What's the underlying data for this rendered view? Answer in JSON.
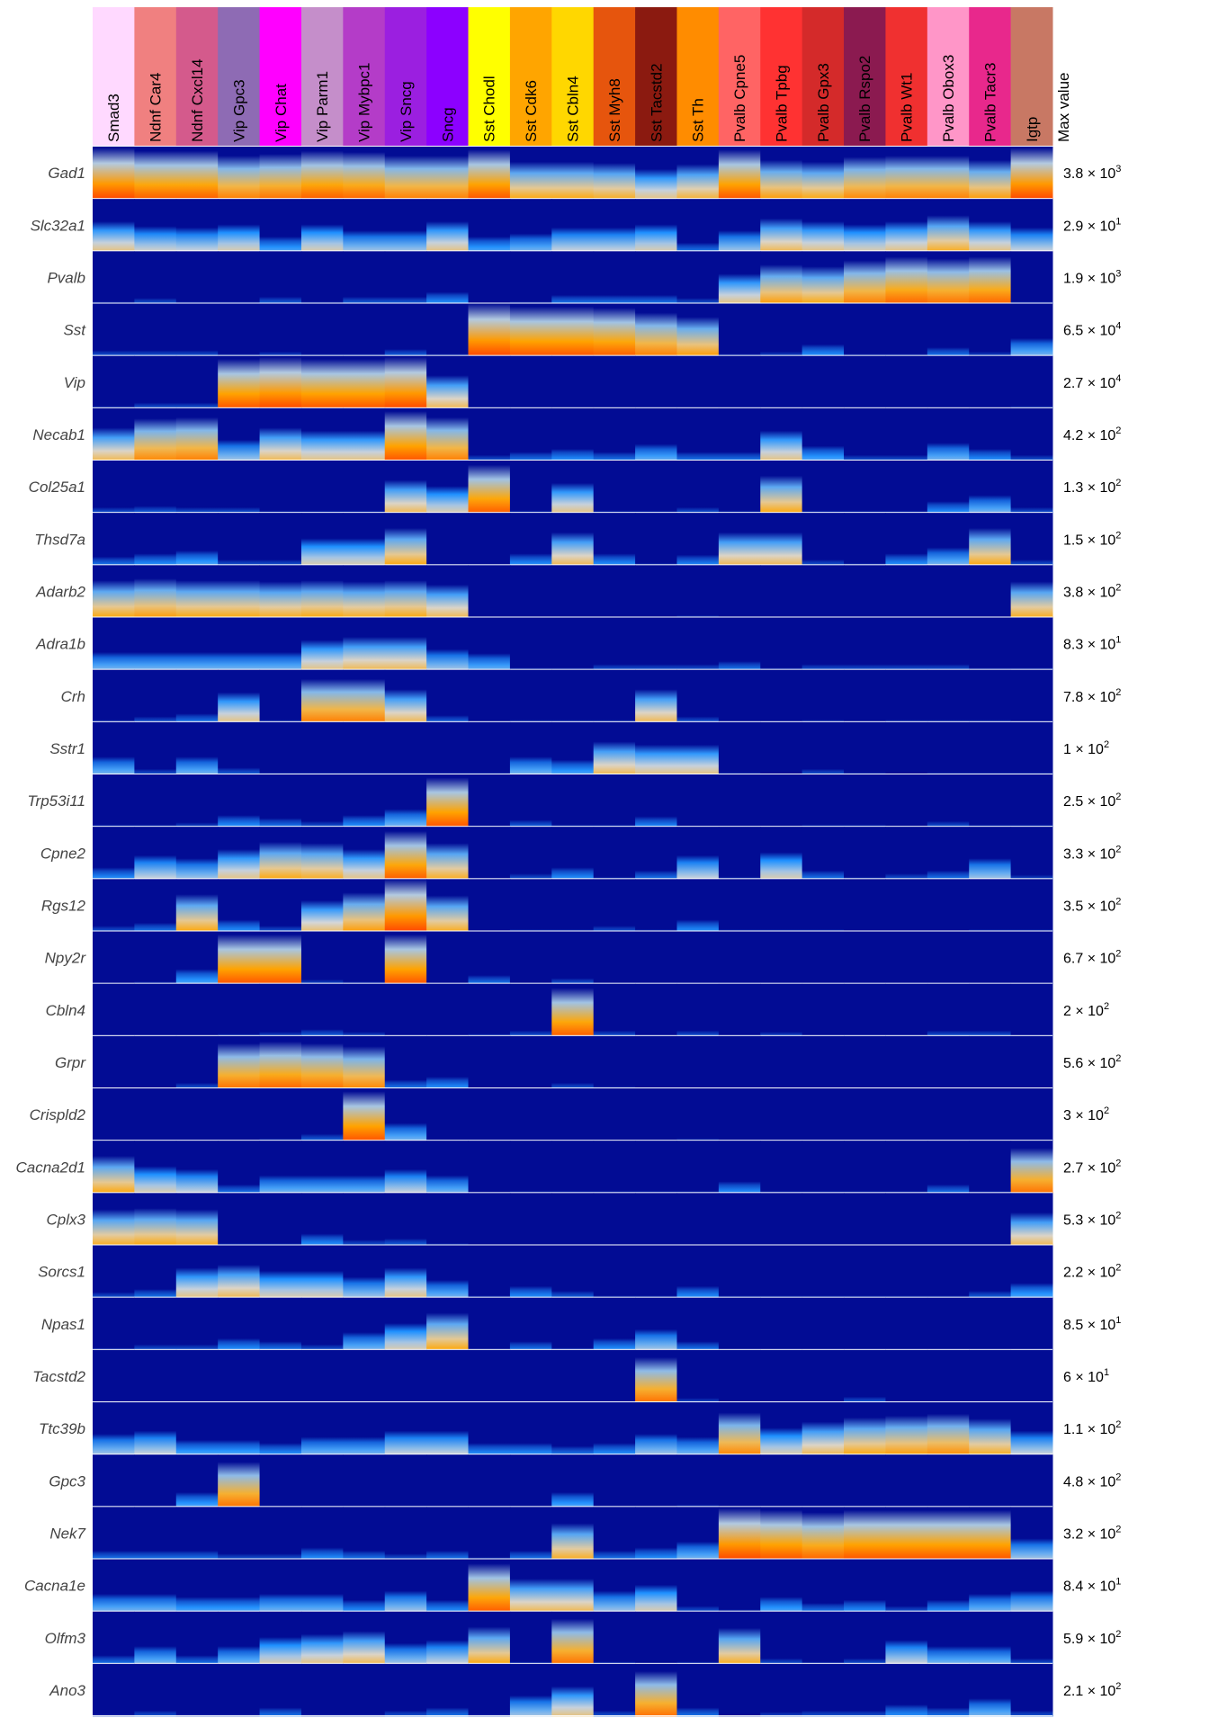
{
  "chart_data": {
    "type": "heatmap",
    "title": "",
    "max_value_header": "Max value",
    "columns": [
      {
        "label": "Smad3",
        "color": "#FFD9FF"
      },
      {
        "label": "Ndnf Car4",
        "color": "#F08080"
      },
      {
        "label": "Ndnf Cxcl14",
        "color": "#D45A8C"
      },
      {
        "label": "Vip Gpc3",
        "color": "#8E6BB4"
      },
      {
        "label": "Vip Chat",
        "color": "#FF00FF"
      },
      {
        "label": "Vip Parm1",
        "color": "#C58ECA"
      },
      {
        "label": "Vip Mybpc1",
        "color": "#B43CC8"
      },
      {
        "label": "Vip Sncg",
        "color": "#9B1FE0"
      },
      {
        "label": "Sncg",
        "color": "#8C00FF"
      },
      {
        "label": "Sst Chodl",
        "color": "#FFFF00"
      },
      {
        "label": "Sst Cdk6",
        "color": "#FFA500"
      },
      {
        "label": "Sst Cbln4",
        "color": "#FFD700"
      },
      {
        "label": "Sst Myh8",
        "color": "#E6550D"
      },
      {
        "label": "Sst Tacstd2",
        "color": "#8B1A10"
      },
      {
        "label": "Sst Th",
        "color": "#FF8C00"
      },
      {
        "label": "Pvalb Cpne5",
        "color": "#FF6464"
      },
      {
        "label": "Pvalb Tpbg",
        "color": "#FF3232"
      },
      {
        "label": "Pvalb Gpx3",
        "color": "#D42A2A"
      },
      {
        "label": "Pvalb Rspo2",
        "color": "#8B1A50"
      },
      {
        "label": "Pvalb Wt1",
        "color": "#F03030"
      },
      {
        "label": "Pvalb Obox3",
        "color": "#FF96C8"
      },
      {
        "label": "Pvalb Tacr3",
        "color": "#E8288C"
      },
      {
        "label": "Igtp",
        "color": "#C87864"
      }
    ],
    "rows": [
      {
        "gene": "Gad1",
        "max_mantissa": "3.8",
        "max_exponent": "3",
        "values": [
          0.85,
          0.8,
          0.8,
          0.72,
          0.75,
          0.8,
          0.78,
          0.72,
          0.72,
          0.82,
          0.62,
          0.62,
          0.6,
          0.5,
          0.58,
          0.82,
          0.65,
          0.62,
          0.7,
          0.72,
          0.72,
          0.65,
          0.85
        ]
      },
      {
        "gene": "Slc32a1",
        "max_mantissa": "2.9",
        "max_exponent": "1",
        "values": [
          0.5,
          0.42,
          0.4,
          0.45,
          0.25,
          0.45,
          0.35,
          0.35,
          0.5,
          0.25,
          0.3,
          0.4,
          0.4,
          0.45,
          0.15,
          0.35,
          0.55,
          0.5,
          0.45,
          0.5,
          0.6,
          0.5,
          0.4
        ]
      },
      {
        "gene": "Pvalb",
        "max_mantissa": "1.9",
        "max_exponent": "3",
        "values": [
          0.05,
          0.1,
          0.05,
          0.05,
          0.12,
          0.05,
          0.12,
          0.12,
          0.2,
          0.02,
          0.05,
          0.15,
          0.15,
          0.15,
          0.1,
          0.5,
          0.65,
          0.62,
          0.72,
          0.78,
          0.75,
          0.78,
          0.05
        ]
      },
      {
        "gene": "Sst",
        "max_mantissa": "6.5",
        "max_exponent": "4",
        "values": [
          0.1,
          0.1,
          0.1,
          0.05,
          0.08,
          0.05,
          0.05,
          0.12,
          0.05,
          0.92,
          0.82,
          0.82,
          0.8,
          0.72,
          0.65,
          0.05,
          0.08,
          0.2,
          0.05,
          0.05,
          0.15,
          0.08,
          0.3
        ]
      },
      {
        "gene": "Vip",
        "max_mantissa": "2.7",
        "max_exponent": "4",
        "values": [
          0.05,
          0.1,
          0.1,
          0.82,
          0.85,
          0.82,
          0.82,
          0.85,
          0.55,
          0.02,
          0.02,
          0.02,
          0.02,
          0.02,
          0.02,
          0.02,
          0.02,
          0.02,
          0.02,
          0.02,
          0.02,
          0.02,
          0.05
        ]
      },
      {
        "gene": "Necab1",
        "max_mantissa": "4.2",
        "max_exponent": "2",
        "values": [
          0.55,
          0.7,
          0.72,
          0.35,
          0.55,
          0.5,
          0.5,
          0.82,
          0.72,
          0.1,
          0.15,
          0.2,
          0.15,
          0.28,
          0.15,
          0.15,
          0.5,
          0.25,
          0.1,
          0.1,
          0.3,
          0.2,
          0.1
        ]
      },
      {
        "gene": "Col25a1",
        "max_mantissa": "1.3",
        "max_exponent": "2",
        "values": [
          0.1,
          0.12,
          0.1,
          0.1,
          0.05,
          0.05,
          0.05,
          0.55,
          0.45,
          0.8,
          0.05,
          0.5,
          0.05,
          0.05,
          0.1,
          0.05,
          0.62,
          0.05,
          0.05,
          0.05,
          0.2,
          0.3,
          0.1
        ]
      },
      {
        "gene": "Thsd7a",
        "max_mantissa": "1.5",
        "max_exponent": "2",
        "values": [
          0.15,
          0.2,
          0.25,
          0.1,
          0.1,
          0.45,
          0.45,
          0.62,
          0.02,
          0.02,
          0.2,
          0.55,
          0.2,
          0.05,
          0.18,
          0.55,
          0.55,
          0.1,
          0.05,
          0.2,
          0.3,
          0.62,
          0.1
        ]
      },
      {
        "gene": "Adarb2",
        "max_mantissa": "3.8",
        "max_exponent": "2",
        "values": [
          0.62,
          0.65,
          0.62,
          0.62,
          0.6,
          0.62,
          0.6,
          0.62,
          0.55,
          0.02,
          0.02,
          0.02,
          0.02,
          0.02,
          0.05,
          0.02,
          0.02,
          0.02,
          0.02,
          0.02,
          0.02,
          0.02,
          0.6
        ]
      },
      {
        "gene": "Adra1b",
        "max_mantissa": "8.3",
        "max_exponent": "1",
        "values": [
          0.3,
          0.3,
          0.3,
          0.3,
          0.3,
          0.5,
          0.55,
          0.55,
          0.35,
          0.28,
          0.05,
          0.05,
          0.1,
          0.1,
          0.1,
          0.15,
          0.05,
          0.1,
          0.1,
          0.1,
          0.1,
          0.05,
          0.05
        ]
      },
      {
        "gene": "Crh",
        "max_mantissa": "7.8",
        "max_exponent": "2",
        "values": [
          0.05,
          0.1,
          0.15,
          0.5,
          0.05,
          0.72,
          0.72,
          0.55,
          0.12,
          0.02,
          0.05,
          0.05,
          0.05,
          0.55,
          0.1,
          0.02,
          0.02,
          0.05,
          0.02,
          0.05,
          0.05,
          0.05,
          0.02
        ]
      },
      {
        "gene": "Sstr1",
        "max_mantissa": "1",
        "max_exponent": "2",
        "values": [
          0.3,
          0.1,
          0.3,
          0.12,
          0.05,
          0.05,
          0.05,
          0.05,
          0.05,
          0.05,
          0.3,
          0.25,
          0.55,
          0.5,
          0.5,
          0.05,
          0.02,
          0.1,
          0.05,
          0.02,
          0.05,
          0.05,
          0.05
        ]
      },
      {
        "gene": "Trp53i11",
        "max_mantissa": "2.5",
        "max_exponent": "2",
        "values": [
          0.05,
          0.05,
          0.08,
          0.2,
          0.15,
          0.1,
          0.2,
          0.3,
          0.82,
          0.02,
          0.12,
          0.05,
          0.05,
          0.18,
          0.02,
          0.02,
          0.02,
          0.05,
          0.05,
          0.02,
          0.1,
          0.05,
          0.05
        ]
      },
      {
        "gene": "Cpne2",
        "max_mantissa": "3.3",
        "max_exponent": "2",
        "values": [
          0.2,
          0.4,
          0.35,
          0.5,
          0.62,
          0.6,
          0.5,
          0.8,
          0.6,
          0.02,
          0.1,
          0.2,
          0.05,
          0.15,
          0.4,
          0.05,
          0.45,
          0.15,
          0.05,
          0.1,
          0.15,
          0.35,
          0.08
        ]
      },
      {
        "gene": "Rgs12",
        "max_mantissa": "3.5",
        "max_exponent": "2",
        "values": [
          0.1,
          0.15,
          0.62,
          0.2,
          0.1,
          0.52,
          0.65,
          0.88,
          0.6,
          0.02,
          0.05,
          0.05,
          0.1,
          0.05,
          0.2,
          0.05,
          0.05,
          0.05,
          0.02,
          0.02,
          0.02,
          0.05,
          0.05
        ]
      },
      {
        "gene": "Npy2r",
        "max_mantissa": "6.7",
        "max_exponent": "2",
        "values": [
          0.02,
          0.05,
          0.25,
          0.82,
          0.82,
          0.08,
          0.05,
          0.82,
          0.02,
          0.15,
          0.02,
          0.1,
          0.02,
          0.02,
          0.02,
          0.02,
          0.02,
          0.02,
          0.02,
          0.02,
          0.02,
          0.02,
          0.02
        ]
      },
      {
        "gene": "Cbln4",
        "max_mantissa": "2",
        "max_exponent": "2",
        "values": [
          0.02,
          0.02,
          0.02,
          0.05,
          0.08,
          0.12,
          0.08,
          0.02,
          0.02,
          0.05,
          0.1,
          0.8,
          0.1,
          0.02,
          0.1,
          0.02,
          0.08,
          0.02,
          0.02,
          0.02,
          0.1,
          0.1,
          0.02
        ]
      },
      {
        "gene": "Grpr",
        "max_mantissa": "5.6",
        "max_exponent": "2",
        "values": [
          0.02,
          0.02,
          0.1,
          0.75,
          0.78,
          0.75,
          0.7,
          0.15,
          0.2,
          0.02,
          0.02,
          0.1,
          0.05,
          0.02,
          0.02,
          0.02,
          0.02,
          0.02,
          0.02,
          0.02,
          0.02,
          0.02,
          0.02
        ]
      },
      {
        "gene": "Crispld2",
        "max_mantissa": "3",
        "max_exponent": "2",
        "values": [
          0.02,
          0.02,
          0.02,
          0.02,
          0.05,
          0.12,
          0.82,
          0.3,
          0.02,
          0.02,
          0.02,
          0.02,
          0.02,
          0.02,
          0.05,
          0.02,
          0.02,
          0.02,
          0.02,
          0.02,
          0.02,
          0.02,
          0.02
        ]
      },
      {
        "gene": "Cacna2d1",
        "max_mantissa": "2.7",
        "max_exponent": "2",
        "values": [
          0.62,
          0.45,
          0.4,
          0.15,
          0.3,
          0.3,
          0.3,
          0.4,
          0.3,
          0.02,
          0.05,
          0.05,
          0.05,
          0.05,
          0.05,
          0.2,
          0.05,
          0.05,
          0.05,
          0.05,
          0.15,
          0.05,
          0.75
        ]
      },
      {
        "gene": "Cplx3",
        "max_mantissa": "5.3",
        "max_exponent": "2",
        "values": [
          0.6,
          0.62,
          0.6,
          0.05,
          0.05,
          0.2,
          0.1,
          0.12,
          0.05,
          0.02,
          0.02,
          0.02,
          0.02,
          0.02,
          0.02,
          0.02,
          0.02,
          0.02,
          0.02,
          0.02,
          0.02,
          0.02,
          0.55
        ]
      },
      {
        "gene": "Sorcs1",
        "max_mantissa": "2.2",
        "max_exponent": "2",
        "values": [
          0.1,
          0.15,
          0.5,
          0.55,
          0.45,
          0.45,
          0.35,
          0.5,
          0.3,
          0.05,
          0.2,
          0.12,
          0.05,
          0.05,
          0.2,
          0.05,
          0.05,
          0.05,
          0.05,
          0.05,
          0.05,
          0.12,
          0.25
        ]
      },
      {
        "gene": "Npas1",
        "max_mantissa": "8.5",
        "max_exponent": "1",
        "values": [
          0.05,
          0.1,
          0.1,
          0.2,
          0.15,
          0.1,
          0.3,
          0.45,
          0.62,
          0.02,
          0.15,
          0.05,
          0.2,
          0.35,
          0.15,
          0.02,
          0.02,
          0.02,
          0.02,
          0.02,
          0.02,
          0.02,
          0.02
        ]
      },
      {
        "gene": "Tacstd2",
        "max_mantissa": "6",
        "max_exponent": "1",
        "values": [
          0.02,
          0.02,
          0.02,
          0.02,
          0.02,
          0.02,
          0.02,
          0.02,
          0.02,
          0.02,
          0.02,
          0.02,
          0.02,
          0.75,
          0.08,
          0.02,
          0.02,
          0.02,
          0.1,
          0.02,
          0.02,
          0.02,
          0.02
        ]
      },
      {
        "gene": "Ttc39b",
        "max_mantissa": "1.1",
        "max_exponent": "2",
        "values": [
          0.35,
          0.4,
          0.25,
          0.25,
          0.2,
          0.3,
          0.3,
          0.4,
          0.4,
          0.2,
          0.2,
          0.15,
          0.2,
          0.35,
          0.3,
          0.7,
          0.45,
          0.55,
          0.62,
          0.65,
          0.68,
          0.6,
          0.4
        ]
      },
      {
        "gene": "Gpc3",
        "max_mantissa": "4.8",
        "max_exponent": "2",
        "values": [
          0.02,
          0.02,
          0.25,
          0.75,
          0.02,
          0.02,
          0.02,
          0.02,
          0.02,
          0.02,
          0.02,
          0.25,
          0.02,
          0.02,
          0.05,
          0.02,
          0.02,
          0.02,
          0.02,
          0.02,
          0.02,
          0.02,
          0.02
        ]
      },
      {
        "gene": "Nek7",
        "max_mantissa": "3.2",
        "max_exponent": "2",
        "values": [
          0.15,
          0.15,
          0.15,
          0.1,
          0.1,
          0.2,
          0.15,
          0.1,
          0.15,
          0.05,
          0.15,
          0.6,
          0.15,
          0.2,
          0.3,
          0.85,
          0.82,
          0.78,
          0.82,
          0.82,
          0.82,
          0.82,
          0.35
        ]
      },
      {
        "gene": "Cacna1e",
        "max_mantissa": "8.4",
        "max_exponent": "1",
        "values": [
          0.3,
          0.3,
          0.25,
          0.25,
          0.3,
          0.3,
          0.2,
          0.35,
          0.2,
          0.8,
          0.55,
          0.55,
          0.35,
          0.45,
          0.1,
          0.05,
          0.25,
          0.15,
          0.2,
          0.1,
          0.2,
          0.3,
          0.35
        ]
      },
      {
        "gene": "Olfm3",
        "max_mantissa": "5.9",
        "max_exponent": "2",
        "values": [
          0.15,
          0.3,
          0.15,
          0.3,
          0.45,
          0.5,
          0.55,
          0.35,
          0.4,
          0.62,
          0.05,
          0.75,
          0.05,
          0.02,
          0.05,
          0.6,
          0.1,
          0.05,
          0.1,
          0.4,
          0.3,
          0.3,
          0.1
        ]
      },
      {
        "gene": "Ano3",
        "max_mantissa": "2.1",
        "max_exponent": "2",
        "values": [
          0.05,
          0.1,
          0.05,
          0.05,
          0.15,
          0.05,
          0.05,
          0.1,
          0.15,
          0.05,
          0.35,
          0.5,
          0.1,
          0.75,
          0.15,
          0.02,
          0.08,
          0.1,
          0.1,
          0.2,
          0.15,
          0.3,
          0.1
        ]
      }
    ],
    "colormap": [
      "#00008B",
      "#1E90FF",
      "#D8D8D8",
      "#FFA500",
      "#FF4500"
    ]
  }
}
